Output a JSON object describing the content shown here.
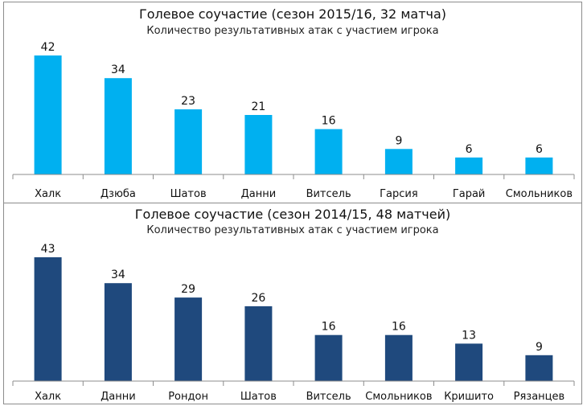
{
  "chart_data": [
    {
      "type": "bar",
      "title": "Голевое соучастие (сезон 2015/16, 32 матча)",
      "subtitle": "Количество результативных атак с участием игрока",
      "categories": [
        "Халк",
        "Дзюба",
        "Шатов",
        "Данни",
        "Витсель",
        "Гарсия",
        "Гарай",
        "Смольников"
      ],
      "values": [
        42,
        34,
        23,
        21,
        16,
        9,
        6,
        6
      ],
      "ylim": [
        0,
        42
      ],
      "color": "#00b0f0",
      "xlabel": "",
      "ylabel": ""
    },
    {
      "type": "bar",
      "title": "Голевое соучастие (сезон 2014/15, 48 матчей)",
      "subtitle": "Количество результативных атак с участием игрока",
      "categories": [
        "Халк",
        "Данни",
        "Рондон",
        "Шатов",
        "Витсель",
        "Смольников",
        "Кришито",
        "Рязанцев"
      ],
      "values": [
        43,
        34,
        29,
        26,
        16,
        16,
        13,
        9
      ],
      "ylim": [
        0,
        43
      ],
      "color": "#1f497d",
      "xlabel": "",
      "ylabel": ""
    }
  ]
}
